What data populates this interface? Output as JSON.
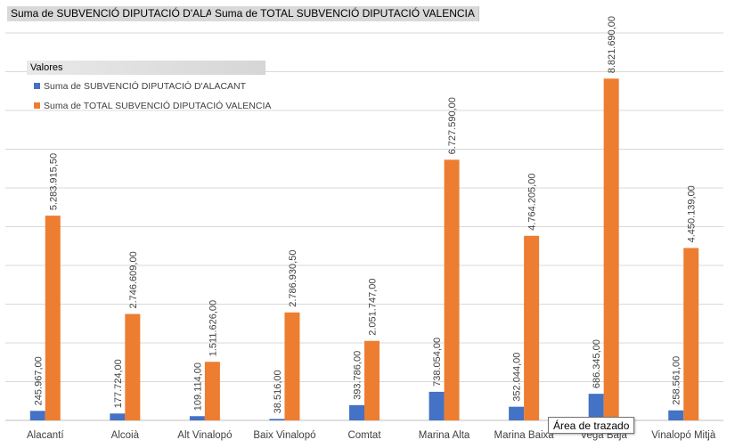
{
  "field_buttons": {
    "series1": "Suma de SUBVENCIÓ DIPUTACIÓ D'ALACANT",
    "series2": "Suma de TOTAL SUBVENCIÓ DIPUTACIÓ VALENCIA"
  },
  "legend": {
    "title": "Valores",
    "items": [
      {
        "label": "Suma de SUBVENCIÓ DIPUTACIÓ D'ALACANT",
        "color": "#4472c4"
      },
      {
        "label": "Suma de TOTAL SUBVENCIÓ DIPUTACIÓ VALENCIA",
        "color": "#ed7d31"
      }
    ]
  },
  "tooltip": {
    "text": "Área de trazado"
  },
  "colors": {
    "gridline": "#d9d9d9",
    "axis": "#bfbfbf",
    "label": "#404040"
  },
  "chart_data": {
    "type": "bar",
    "title": "",
    "xlabel": "",
    "ylabel": "",
    "ylim": [
      0,
      10000000
    ],
    "grid": true,
    "legend_position": "top-left",
    "categories": [
      "Alacantí",
      "Alcoià",
      "Alt Vinalopó",
      "Baix Vinalopó",
      "Comtat",
      "Marina Alta",
      "Marina Baixa",
      "Vega Baja",
      "Vinalopó Mitjà"
    ],
    "series": [
      {
        "name": "Suma de SUBVENCIÓ DIPUTACIÓ D'ALACANT",
        "color": "#4472c4",
        "values": [
          245967,
          177724,
          109114,
          38516,
          393786,
          738054,
          352044,
          686345,
          258561
        ],
        "labels": [
          "245.967,00",
          "177.724,00",
          "109.114,00",
          "38.516,00",
          "393.786,00",
          "738.054,00",
          "352.044,00",
          "686.345,00",
          "258.561,00"
        ]
      },
      {
        "name": "Suma de TOTAL SUBVENCIÓ DIPUTACIÓ VALENCIA",
        "color": "#ed7d31",
        "values": [
          5283915.5,
          2746609,
          1511626,
          2786930.5,
          2051747,
          6727590,
          4764205,
          8821690,
          4450139
        ],
        "labels": [
          "5.283.915,50",
          "2.746.609,00",
          "1.511.626,00",
          "2.786.930,50",
          "2.051.747,00",
          "6.727.590,00",
          "4.764.205,00",
          "8.821.690,00",
          "4.450.139,00"
        ]
      }
    ]
  }
}
